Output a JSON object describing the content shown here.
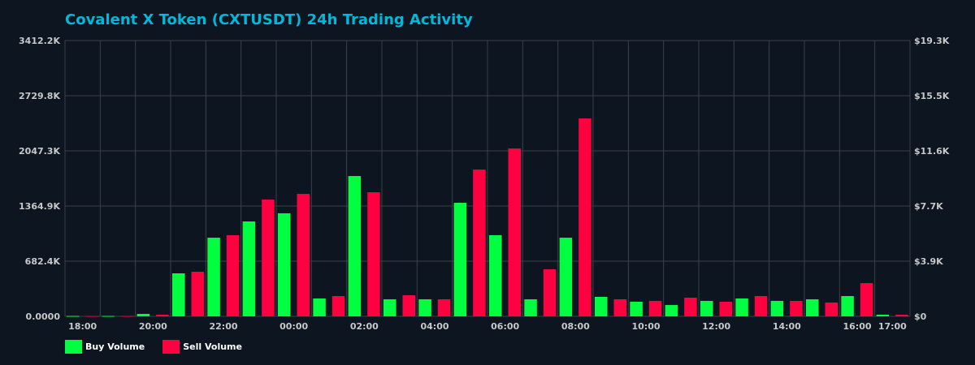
{
  "chart_data": {
    "type": "bar",
    "title": "Covalent X Token (CXTUSDT) 24h Trading Activity",
    "categories": [
      "18:00",
      "19:00",
      "20:00",
      "21:00",
      "22:00",
      "23:00",
      "00:00",
      "01:00",
      "02:00",
      "03:00",
      "04:00",
      "05:00",
      "06:00",
      "07:00",
      "08:00",
      "09:00",
      "10:00",
      "11:00",
      "12:00",
      "13:00",
      "14:00",
      "15:00",
      "16:00",
      "17:00"
    ],
    "x_tick_labels": [
      "18:00",
      "20:00",
      "22:00",
      "00:00",
      "02:00",
      "04:00",
      "06:00",
      "08:00",
      "10:00",
      "12:00",
      "14:00",
      "16:00",
      "17:00"
    ],
    "series": [
      {
        "name": "Buy Volume",
        "color": "#00ff41",
        "values": [
          5,
          5,
          30,
          532,
          973,
          1174,
          1275,
          221,
          1736,
          211,
          211,
          1405,
          1004,
          211,
          973,
          241,
          181,
          140,
          191,
          221,
          191,
          211,
          251,
          20
        ]
      },
      {
        "name": "Sell Volume",
        "color": "#ff0040",
        "values": [
          5,
          5,
          20,
          552,
          1004,
          1445,
          1515,
          251,
          1535,
          261,
          211,
          1816,
          2077,
          582,
          2449,
          211,
          191,
          231,
          181,
          251,
          191,
          171,
          411,
          20
        ]
      }
    ],
    "value_unit": "K",
    "ylim": [
      0,
      3412.2
    ],
    "y_tick_labels_left": [
      "0.0000",
      "682.4K",
      "1364.9K",
      "2047.3K",
      "2729.8K",
      "3412.2K"
    ],
    "y_tick_labels_right": [
      "$0",
      "$3.9K",
      "$7.7K",
      "$11.6K",
      "$15.5K",
      "$19.3K"
    ],
    "grid": true,
    "legend_position": "bottom-left"
  }
}
